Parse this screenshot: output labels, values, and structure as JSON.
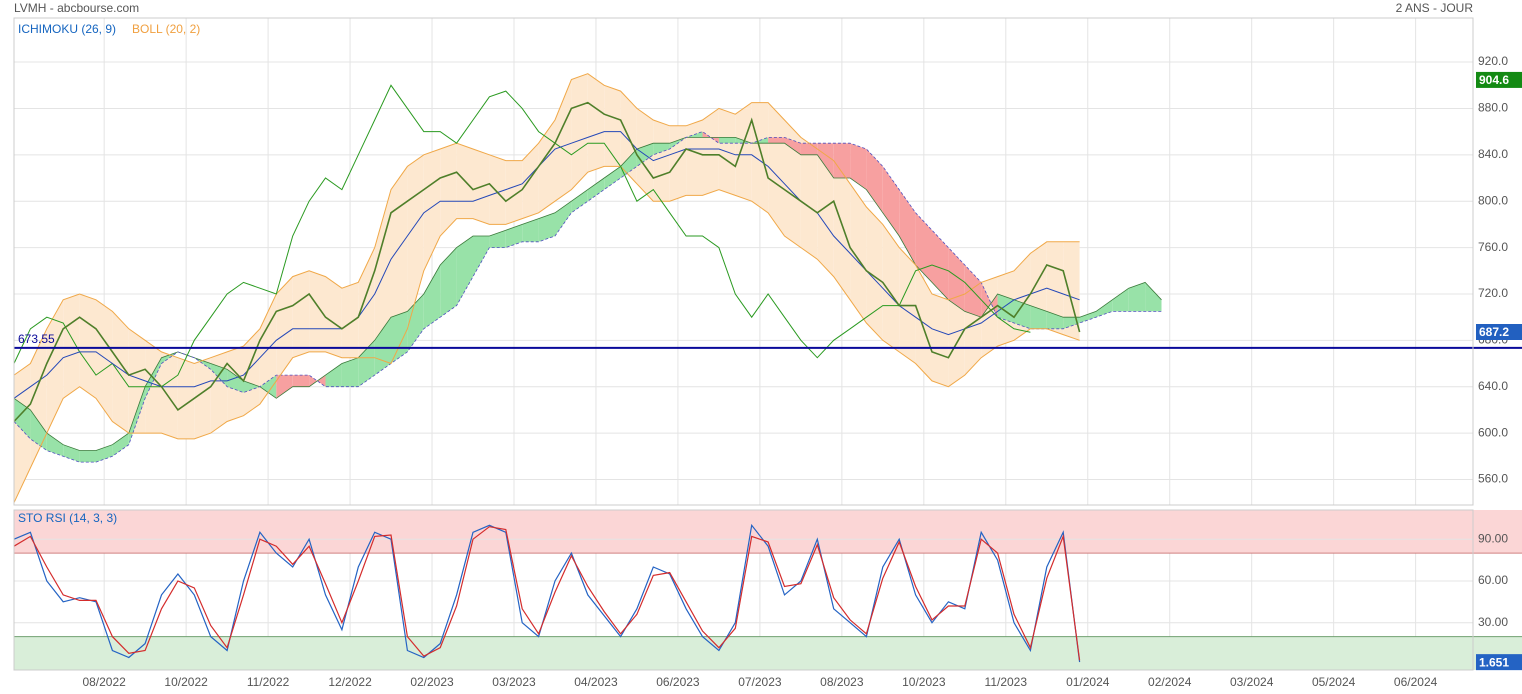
{
  "header": {
    "title": "LVMH - abcbourse.com",
    "period": "2 ANS - JOUR"
  },
  "xaxis": {
    "xlim": [
      0,
      89
    ],
    "xticks": [
      {
        "value": 5.5,
        "label": "08/2022"
      },
      {
        "value": 10.5,
        "label": "10/2022"
      },
      {
        "value": 15.5,
        "label": "11/2022"
      },
      {
        "value": 20.5,
        "label": "12/2022"
      },
      {
        "value": 25.5,
        "label": "02/2023"
      },
      {
        "value": 30.5,
        "label": "03/2023"
      },
      {
        "value": 35.5,
        "label": "04/2023"
      },
      {
        "value": 40.5,
        "label": "06/2023"
      },
      {
        "value": 45.5,
        "label": "07/2023"
      },
      {
        "value": 50.5,
        "label": "08/2023"
      },
      {
        "value": 55.5,
        "label": "10/2023"
      },
      {
        "value": 60.5,
        "label": "11/2023"
      },
      {
        "value": 65.5,
        "label": "01/2024"
      },
      {
        "value": 70.5,
        "label": "02/2024"
      },
      {
        "value": 75.5,
        "label": "03/2024"
      },
      {
        "value": 80.5,
        "label": "05/2024"
      },
      {
        "value": 85.5,
        "label": "06/2024"
      }
    ]
  },
  "chart_data": [
    {
      "type": "ichimoku",
      "labels": [
        {
          "text": "ICHIMOKU (26, 9)",
          "color": "#1565c0"
        },
        {
          "text": "BOLL (20, 2)",
          "color": "#f0a040"
        }
      ],
      "ylim": [
        538,
        958
      ],
      "yticks": [
        {
          "value": 560,
          "label": "560.0"
        },
        {
          "value": 600,
          "label": "600.0"
        },
        {
          "value": 640,
          "label": "640.0"
        },
        {
          "value": 680,
          "label": "680.0"
        },
        {
          "value": 720,
          "label": "720.0"
        },
        {
          "value": 760,
          "label": "760.0"
        },
        {
          "value": 800,
          "label": "800.0"
        },
        {
          "value": 840,
          "label": "840.0"
        },
        {
          "value": 880,
          "label": "880.0"
        },
        {
          "value": 920,
          "label": "920.0"
        }
      ],
      "grid": true,
      "close": {
        "color": "#4f7f2a",
        "values": [
          610,
          625,
          660,
          690,
          700,
          690,
          670,
          650,
          655,
          640,
          620,
          630,
          640,
          660,
          645,
          680,
          705,
          710,
          720,
          700,
          690,
          700,
          740,
          790,
          800,
          810,
          820,
          825,
          810,
          815,
          800,
          810,
          830,
          850,
          880,
          885,
          875,
          870,
          840,
          820,
          825,
          845,
          840,
          840,
          830,
          870,
          820,
          810,
          800,
          790,
          800,
          760,
          740,
          730,
          710,
          710,
          670,
          665,
          690,
          700,
          710,
          700,
          720,
          745,
          740,
          687.2
        ]
      },
      "boll_upper": {
        "color": "#f0a848",
        "values": [
          650,
          660,
          690,
          715,
          720,
          715,
          705,
          690,
          680,
          670,
          665,
          660,
          665,
          670,
          675,
          690,
          720,
          735,
          740,
          735,
          725,
          730,
          760,
          810,
          830,
          840,
          845,
          850,
          845,
          840,
          835,
          835,
          850,
          870,
          905,
          910,
          900,
          895,
          880,
          870,
          865,
          865,
          870,
          880,
          875,
          885,
          885,
          870,
          855,
          845,
          835,
          815,
          795,
          780,
          760,
          745,
          720,
          715,
          720,
          730,
          735,
          740,
          755,
          765,
          765,
          765
        ]
      },
      "boll_lower": {
        "color": "#f0a848",
        "values": [
          540,
          570,
          600,
          630,
          640,
          630,
          610,
          600,
          600,
          600,
          595,
          595,
          600,
          610,
          615,
          625,
          645,
          665,
          670,
          670,
          665,
          665,
          665,
          660,
          690,
          740,
          770,
          785,
          785,
          780,
          780,
          785,
          790,
          800,
          810,
          825,
          830,
          830,
          815,
          800,
          800,
          805,
          805,
          810,
          805,
          800,
          790,
          770,
          760,
          750,
          735,
          715,
          695,
          680,
          670,
          660,
          645,
          640,
          650,
          665,
          675,
          680,
          690,
          690,
          685,
          680
        ]
      },
      "boll_fill": "#fde8d0",
      "kijun": {
        "color": "#2448b8",
        "values": [
          630,
          640,
          650,
          665,
          670,
          670,
          660,
          650,
          645,
          640,
          640,
          640,
          645,
          645,
          650,
          665,
          680,
          690,
          690,
          690,
          690,
          700,
          720,
          750,
          770,
          790,
          800,
          800,
          800,
          805,
          810,
          815,
          830,
          845,
          850,
          855,
          860,
          860,
          845,
          835,
          840,
          845,
          845,
          845,
          840,
          840,
          830,
          815,
          800,
          790,
          770,
          755,
          740,
          725,
          710,
          700,
          690,
          685,
          690,
          695,
          705,
          715,
          720,
          725,
          720,
          715
        ]
      },
      "chikou": {
        "color": "#2a9a20",
        "values": [
          660,
          690,
          700,
          695,
          670,
          650,
          660,
          640,
          640,
          640,
          650,
          680,
          700,
          720,
          730,
          725,
          720,
          770,
          800,
          820,
          810,
          840,
          870,
          900,
          880,
          860,
          860,
          850,
          870,
          890,
          895,
          880,
          860,
          850,
          840,
          850,
          850,
          830,
          800,
          810,
          790,
          770,
          770,
          760,
          720,
          700,
          720,
          700,
          680,
          665,
          680,
          690,
          700,
          710,
          710,
          740,
          745,
          740,
          730,
          715,
          700,
          690,
          687
        ]
      },
      "span_a": {
        "values": [
          630,
          620,
          600,
          590,
          585,
          585,
          590,
          600,
          640,
          665,
          670,
          665,
          660,
          655,
          645,
          640,
          630,
          640,
          640,
          650,
          660,
          665,
          680,
          700,
          705,
          720,
          745,
          760,
          770,
          770,
          775,
          780,
          785,
          790,
          800,
          810,
          820,
          830,
          845,
          850,
          850,
          855,
          855,
          855,
          855,
          850,
          850,
          850,
          840,
          840,
          820,
          820,
          810,
          790,
          770,
          745,
          730,
          715,
          705,
          700,
          720,
          715,
          710,
          705,
          700,
          700,
          705,
          715,
          725,
          730,
          715
        ]
      },
      "span_b": {
        "values": [
          610,
          595,
          585,
          580,
          575,
          575,
          580,
          590,
          630,
          660,
          670,
          665,
          655,
          640,
          635,
          640,
          650,
          650,
          650,
          640,
          640,
          640,
          650,
          660,
          670,
          690,
          700,
          710,
          735,
          760,
          760,
          765,
          765,
          770,
          790,
          800,
          810,
          820,
          830,
          840,
          845,
          855,
          860,
          850,
          850,
          850,
          855,
          855,
          850,
          850,
          850,
          850,
          845,
          830,
          810,
          790,
          775,
          760,
          745,
          730,
          700,
          695,
          690,
          690,
          690,
          695,
          700,
          705,
          705,
          705,
          705
        ]
      },
      "cloud_up_color": "#98e2a8",
      "cloud_down_color": "#f7a0a0",
      "level_line": {
        "value": 673.55,
        "color": "#0a0a9a"
      },
      "high_marker": {
        "value": 904.6,
        "color": "#138a13"
      },
      "last_color": "#2260c0"
    },
    {
      "type": "stoch",
      "title": "STO RSI (14, 3, 3)",
      "ylim": [
        -4,
        111
      ],
      "yticks": [
        {
          "value": 30,
          "label": "30.00"
        },
        {
          "value": 60,
          "label": "60.00"
        },
        {
          "value": 90,
          "label": "90.00"
        }
      ],
      "grid": true,
      "overbought": 80,
      "oversold": 20,
      "overbought_color": "#fbd6d6",
      "oversold_color": "#d9eed9",
      "series": [
        {
          "color": "#2463c4",
          "values": [
            90,
            95,
            60,
            45,
            48,
            45,
            10,
            5,
            15,
            50,
            65,
            50,
            20,
            10,
            60,
            95,
            80,
            70,
            90,
            50,
            25,
            70,
            95,
            90,
            10,
            5,
            15,
            50,
            95,
            100,
            95,
            30,
            20,
            60,
            80,
            50,
            35,
            20,
            40,
            70,
            65,
            40,
            20,
            10,
            30,
            100,
            85,
            50,
            60,
            90,
            40,
            30,
            20,
            70,
            90,
            50,
            30,
            45,
            40,
            95,
            75,
            30,
            10,
            70,
            95,
            1.651
          ]
        },
        {
          "color": "#d42c2c",
          "values": [
            85,
            92,
            70,
            50,
            46,
            46,
            20,
            8,
            10,
            40,
            60,
            55,
            28,
            12,
            50,
            90,
            85,
            72,
            85,
            58,
            30,
            60,
            92,
            93,
            20,
            6,
            12,
            42,
            90,
            99,
            97,
            40,
            22,
            52,
            78,
            56,
            38,
            22,
            36,
            64,
            66,
            45,
            24,
            12,
            26,
            92,
            88,
            56,
            58,
            86,
            48,
            32,
            22,
            62,
            88,
            56,
            32,
            42,
            42,
            90,
            80,
            36,
            12,
            62,
            92,
            3
          ]
        }
      ]
    }
  ]
}
